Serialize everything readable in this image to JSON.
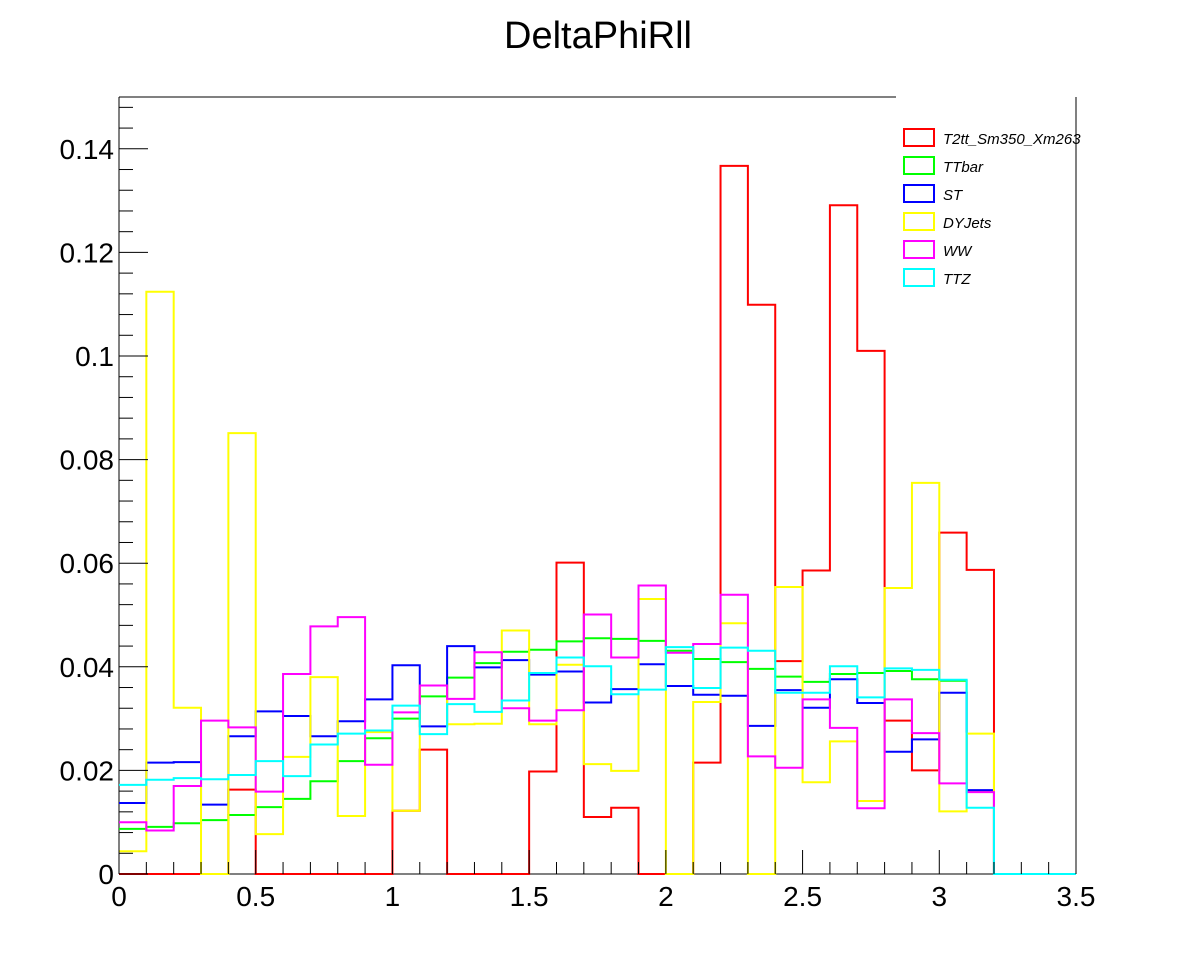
{
  "chart_data": {
    "type": "line",
    "style": "step-histogram",
    "title": "DeltaPhiRll",
    "xlabel": "",
    "ylabel": "",
    "xlim": [
      0,
      3.5
    ],
    "ylim": [
      0,
      0.15
    ],
    "bin_width": 0.1,
    "x_bin_edges_start": 0,
    "xticks": [
      0,
      0.5,
      1,
      1.5,
      2,
      2.5,
      3,
      3.5
    ],
    "xtick_labels": [
      "0",
      "0.5",
      "1",
      "1.5",
      "2",
      "2.5",
      "3",
      "3.5"
    ],
    "yticks": [
      0,
      0.02,
      0.04,
      0.06,
      0.08,
      0.1,
      0.12,
      0.14
    ],
    "ytick_labels": [
      "0",
      "0.02",
      "0.04",
      "0.06",
      "0.08",
      "0.1",
      "0.12",
      "0.14"
    ],
    "grid": false,
    "legend_position": "top-right",
    "series": [
      {
        "name": "T2tt_Sm350_Xm263",
        "color": "#ff0000",
        "values": [
          0,
          0,
          0,
          0,
          0.0163,
          0,
          0,
          0,
          0,
          0,
          0.0122,
          0.024,
          0,
          0,
          0,
          0.0198,
          0.0601,
          0.011,
          0.0128,
          0,
          0,
          0.0215,
          0.1367,
          0.1099,
          0.0411,
          0.0586,
          0.1291,
          0.101,
          0.0296,
          0.02,
          0.0659,
          0.0587,
          0,
          0,
          0
        ]
      },
      {
        "name": "TTbar",
        "color": "#00ff00",
        "values": [
          0.0087,
          0.0091,
          0.0098,
          0.0104,
          0.0114,
          0.0129,
          0.0145,
          0.0179,
          0.0218,
          0.0262,
          0.03,
          0.0343,
          0.0379,
          0.0407,
          0.0429,
          0.0433,
          0.0449,
          0.0455,
          0.0454,
          0.045,
          0.0431,
          0.0415,
          0.0409,
          0.0396,
          0.0381,
          0.0371,
          0.0386,
          0.0388,
          0.0392,
          0.0376,
          0.0373,
          0.0159,
          0,
          0,
          0
        ]
      },
      {
        "name": "ST",
        "color": "#0000ff",
        "values": [
          0.0137,
          0.0215,
          0.0216,
          0.0134,
          0.0266,
          0.0314,
          0.0305,
          0.0266,
          0.0295,
          0.0337,
          0.0403,
          0.0285,
          0.044,
          0.0399,
          0.0413,
          0.0385,
          0.0391,
          0.0331,
          0.0357,
          0.0405,
          0.0363,
          0.0346,
          0.0344,
          0.0286,
          0.0355,
          0.0321,
          0.0376,
          0.033,
          0.0236,
          0.026,
          0.035,
          0.0162,
          0,
          0,
          0
        ]
      },
      {
        "name": "DYJets",
        "color": "#ffff00",
        "values": [
          0.0044,
          0.1124,
          0.0321,
          0,
          0.0851,
          0.0077,
          0.0226,
          0.038,
          0.0112,
          0.0274,
          0.0122,
          0.0364,
          0.0289,
          0.029,
          0.047,
          0.0289,
          0.0404,
          0.0212,
          0.0199,
          0.0531,
          0,
          0.0332,
          0.0484,
          0,
          0.0554,
          0.0177,
          0.0256,
          0.0141,
          0.0552,
          0.0755,
          0.0121,
          0.0271,
          0,
          0,
          0
        ]
      },
      {
        "name": "WW",
        "color": "#ff00ff",
        "values": [
          0.01,
          0.0084,
          0.017,
          0.0296,
          0.0283,
          0.0159,
          0.0386,
          0.0478,
          0.0496,
          0.0211,
          0.0312,
          0.0364,
          0.0338,
          0.0428,
          0.032,
          0.0296,
          0.0316,
          0.0501,
          0.0418,
          0.0557,
          0.0427,
          0.0444,
          0.0539,
          0.0227,
          0.0205,
          0.0337,
          0.0282,
          0.0127,
          0.0337,
          0.0272,
          0.0175,
          0.0158,
          0,
          0,
          0
        ]
      },
      {
        "name": "TTZ",
        "color": "#00ffff",
        "values": [
          0.0172,
          0.0182,
          0.0185,
          0.0183,
          0.0191,
          0.0218,
          0.0189,
          0.025,
          0.0271,
          0.0277,
          0.0325,
          0.027,
          0.0328,
          0.0313,
          0.0335,
          0.0388,
          0.0418,
          0.0401,
          0.0347,
          0.0356,
          0.0438,
          0.0359,
          0.0437,
          0.0431,
          0.035,
          0.035,
          0.0401,
          0.0341,
          0.0397,
          0.0394,
          0.0375,
          0.0128,
          0,
          0,
          0
        ]
      }
    ]
  }
}
